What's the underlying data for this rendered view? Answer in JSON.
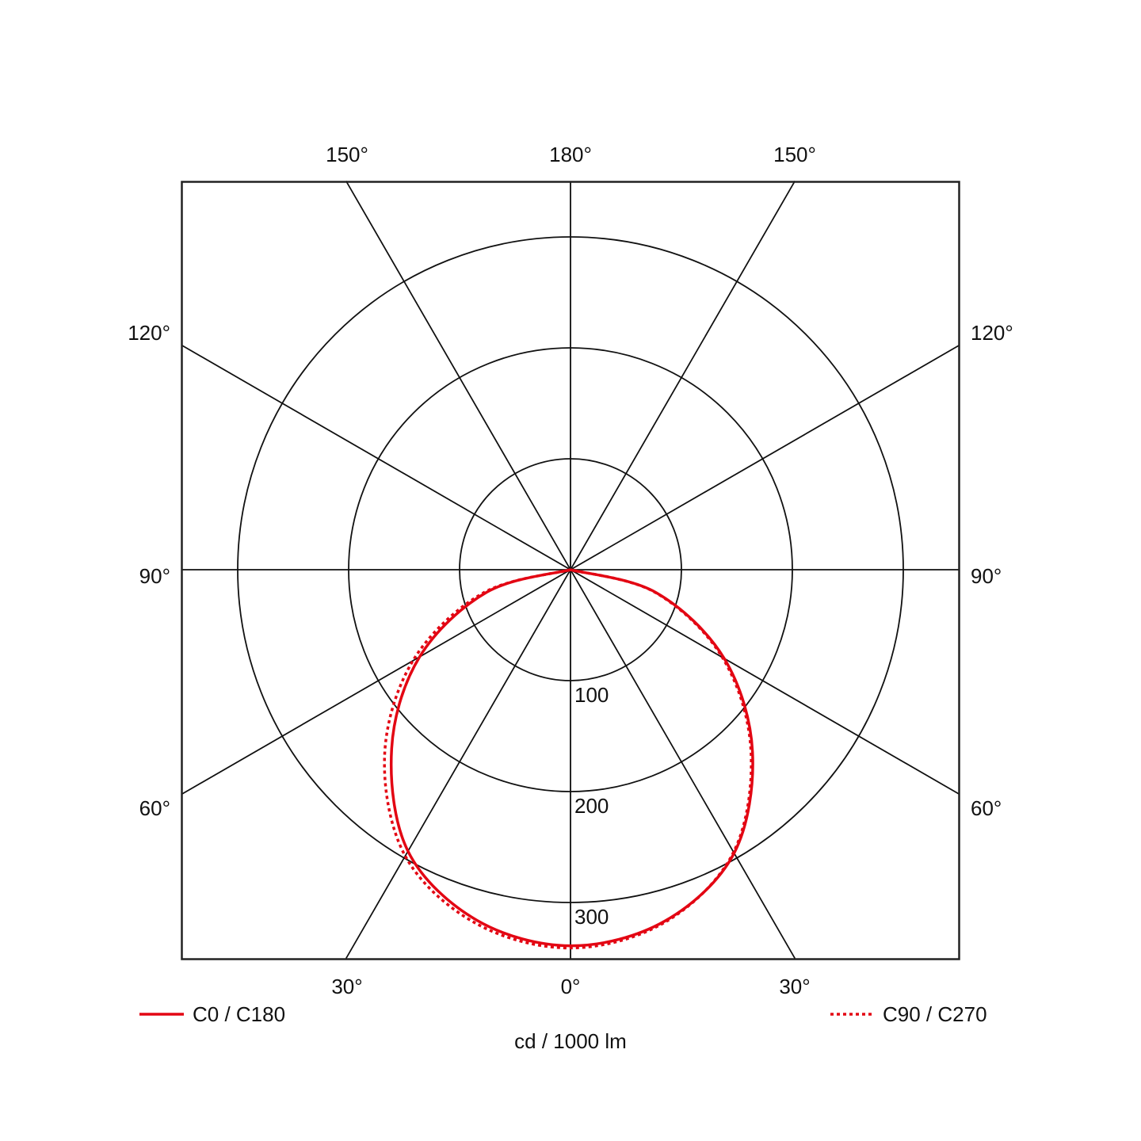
{
  "chart_data": {
    "type": "polar",
    "title": "",
    "unit_label": "cd / 1000 lm",
    "radial_range": [
      0,
      350
    ],
    "radial_ticks": [
      100,
      200,
      300
    ],
    "radial_tick_labels": [
      "100",
      "200",
      "300"
    ],
    "angle_labels": {
      "top": [
        "150°",
        "180°",
        "150°"
      ],
      "left": [
        "120°",
        "90°",
        "60°"
      ],
      "right": [
        "120°",
        "90°",
        "60°"
      ],
      "bottom": [
        "30°",
        "0°",
        "30°"
      ]
    },
    "angle_spokes_deg": [
      0,
      30,
      60,
      90,
      120,
      150,
      180
    ],
    "grid": true,
    "colors": {
      "grid": "#111111",
      "series": "#e30613"
    },
    "legend": {
      "placement": "bottom"
    },
    "angles_deg": [
      -90,
      -75,
      -60,
      -45,
      -30,
      -15,
      0,
      15,
      30,
      45,
      60,
      75,
      90
    ],
    "series": [
      {
        "name": "C0 / C180",
        "style": "solid",
        "values": [
          0,
          78,
          157,
          228,
          293,
          327,
          339,
          328,
          295,
          232,
          160,
          80,
          0
        ]
      },
      {
        "name": "C90 / C270",
        "style": "dotted",
        "values": [
          0,
          82,
          164,
          237,
          298,
          330,
          341,
          329,
          294,
          230,
          158,
          79,
          0
        ]
      }
    ]
  }
}
